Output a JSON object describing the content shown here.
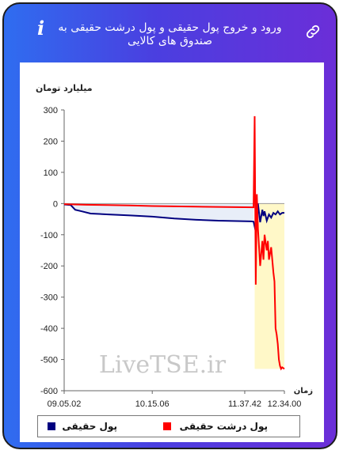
{
  "header": {
    "title": "ورود و خروج پول حقیقی و پول درشت حقیقی به صندوق های کالایی",
    "info_icon": "info-icon",
    "link_icon": "link-icon"
  },
  "colors": {
    "accent_from": "#2f6df0",
    "accent_to": "#6b2ed8",
    "series_real": "#000080",
    "series_large": "#ff0000",
    "fill_area": "#fff8c8"
  },
  "chart_data": {
    "type": "line",
    "ylabel": "میلیارد تومان",
    "xlabel": "زمان",
    "ylim": [
      -600,
      300
    ],
    "yticks": [
      300,
      200,
      100,
      0,
      -100,
      -200,
      -300,
      -400,
      -500,
      -600
    ],
    "xticks": [
      "09.05.02",
      "10.15.06",
      "11.37.42",
      "12.34.00"
    ],
    "watermark": "LiveTSE.ir",
    "grid": false,
    "legend_position": "bottom",
    "series": [
      {
        "name": "پول حقیقی",
        "color": "#000080",
        "points": [
          [
            0,
            -3
          ],
          [
            0.03,
            -5
          ],
          [
            0.05,
            -20
          ],
          [
            0.08,
            -25
          ],
          [
            0.12,
            -32
          ],
          [
            0.2,
            -35
          ],
          [
            0.3,
            -38
          ],
          [
            0.4,
            -42
          ],
          [
            0.5,
            -48
          ],
          [
            0.6,
            -52
          ],
          [
            0.7,
            -55
          ],
          [
            0.85,
            -57
          ],
          [
            0.86,
            -58
          ],
          [
            0.87,
            -90
          ],
          [
            0.875,
            -10
          ],
          [
            0.88,
            0
          ],
          [
            0.885,
            -30
          ],
          [
            0.89,
            -60
          ],
          [
            0.9,
            -20
          ],
          [
            0.905,
            -40
          ],
          [
            0.91,
            -25
          ],
          [
            0.92,
            -55
          ],
          [
            0.93,
            -35
          ],
          [
            0.94,
            -45
          ],
          [
            0.95,
            -30
          ],
          [
            0.96,
            -35
          ],
          [
            0.97,
            -25
          ],
          [
            0.98,
            -35
          ],
          [
            0.99,
            -30
          ],
          [
            1.0,
            -30
          ]
        ]
      },
      {
        "name": "پول درشت حقیقی",
        "color": "#ff0000",
        "points": [
          [
            0,
            -2
          ],
          [
            0.05,
            -3
          ],
          [
            0.1,
            -4
          ],
          [
            0.2,
            -5
          ],
          [
            0.3,
            -6
          ],
          [
            0.4,
            -8
          ],
          [
            0.5,
            -9
          ],
          [
            0.6,
            -10
          ],
          [
            0.7,
            -11
          ],
          [
            0.86,
            -12
          ],
          [
            0.865,
            280
          ],
          [
            0.87,
            -260
          ],
          [
            0.875,
            30
          ],
          [
            0.88,
            -80
          ],
          [
            0.89,
            -200
          ],
          [
            0.9,
            -120
          ],
          [
            0.905,
            -180
          ],
          [
            0.91,
            -100
          ],
          [
            0.92,
            -150
          ],
          [
            0.925,
            -120
          ],
          [
            0.93,
            -180
          ],
          [
            0.94,
            -140
          ],
          [
            0.95,
            -220
          ],
          [
            0.955,
            -250
          ],
          [
            0.96,
            -400
          ],
          [
            0.965,
            -420
          ],
          [
            0.97,
            -450
          ],
          [
            0.975,
            -500
          ],
          [
            0.98,
            -520
          ],
          [
            0.985,
            -530
          ],
          [
            0.99,
            -525
          ],
          [
            1.0,
            -530
          ]
        ]
      }
    ]
  }
}
